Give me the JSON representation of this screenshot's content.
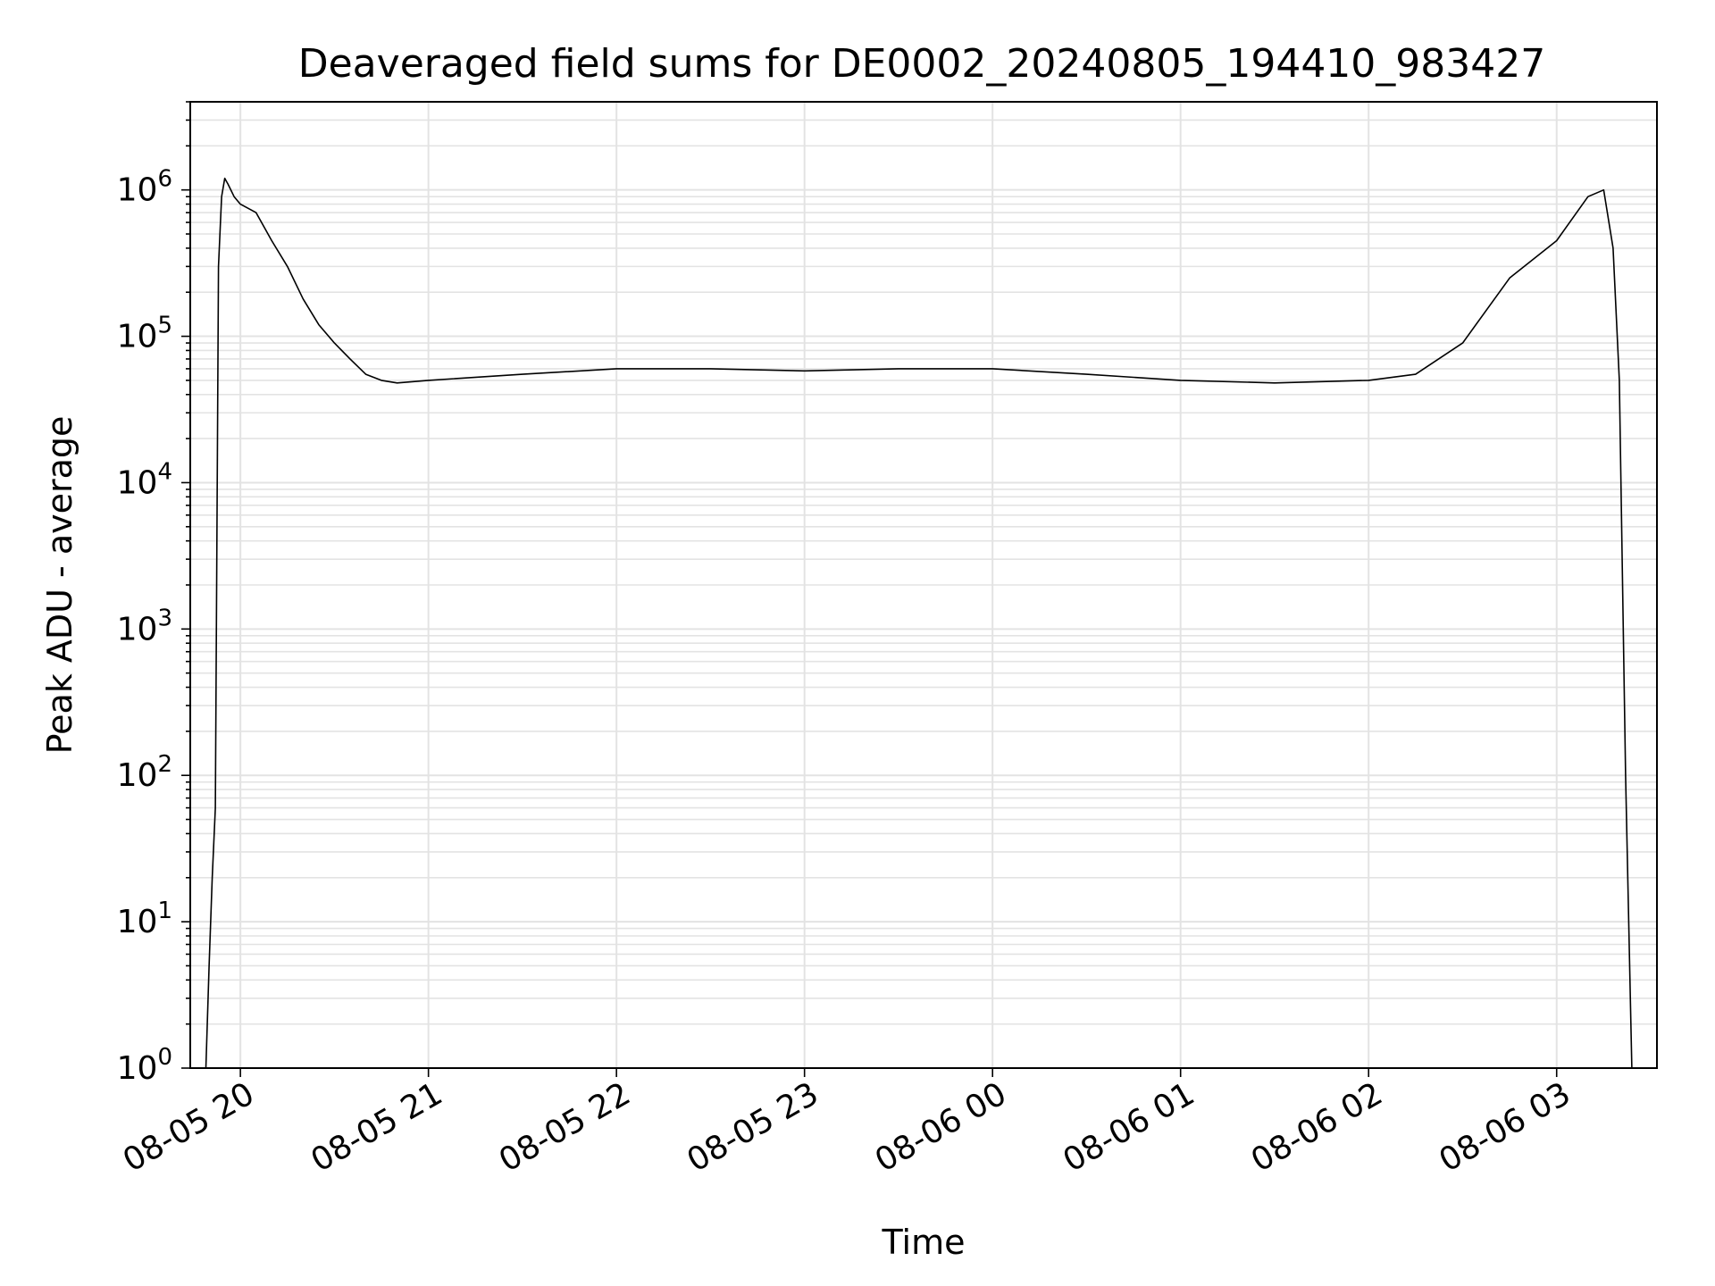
{
  "chart_data": {
    "type": "line",
    "title": "Deaveraged field sums for DE0002_20240805_194410_983427",
    "xlabel": "Time",
    "ylabel": "Peak ADU - average",
    "y_scale": "log",
    "ylim": [
      1,
      4000000
    ],
    "xlim": [
      "2024-08-05 19:44",
      "2024-08-06 03:32"
    ],
    "grid": true,
    "line_color": "#000000",
    "x_tick_labels": [
      "08-05 20",
      "08-05 21",
      "08-05 22",
      "08-05 23",
      "08-06 00",
      "08-06 01",
      "08-06 02",
      "08-06 03"
    ],
    "x_tick_values": [
      "2024-08-05 20:00",
      "2024-08-05 21:00",
      "2024-08-05 22:00",
      "2024-08-05 23:00",
      "2024-08-06 00:00",
      "2024-08-06 01:00",
      "2024-08-06 02:00",
      "2024-08-06 03:00"
    ],
    "y_tick_labels": [
      {
        "base": "10",
        "exp": "0",
        "value": 1
      },
      {
        "base": "10",
        "exp": "1",
        "value": 10
      },
      {
        "base": "10",
        "exp": "2",
        "value": 100
      },
      {
        "base": "10",
        "exp": "3",
        "value": 1000
      },
      {
        "base": "10",
        "exp": "4",
        "value": 10000
      },
      {
        "base": "10",
        "exp": "5",
        "value": 100000
      },
      {
        "base": "10",
        "exp": "6",
        "value": 1000000
      }
    ],
    "series": [
      {
        "x": [
          "2024-08-05 19:49",
          "2024-08-05 19:50",
          "2024-08-05 19:51",
          "2024-08-05 19:52",
          "2024-08-05 19:53",
          "2024-08-05 19:54",
          "2024-08-05 19:55",
          "2024-08-05 19:56",
          "2024-08-05 19:58",
          "2024-08-05 20:00",
          "2024-08-05 20:05",
          "2024-08-05 20:10",
          "2024-08-05 20:15",
          "2024-08-05 20:20",
          "2024-08-05 20:25",
          "2024-08-05 20:30",
          "2024-08-05 20:35",
          "2024-08-05 20:40",
          "2024-08-05 20:45",
          "2024-08-05 20:50",
          "2024-08-05 21:00",
          "2024-08-05 21:30",
          "2024-08-05 22:00",
          "2024-08-05 22:30",
          "2024-08-05 23:00",
          "2024-08-05 23:30",
          "2024-08-06 00:00",
          "2024-08-06 00:30",
          "2024-08-06 01:00",
          "2024-08-06 01:30",
          "2024-08-06 02:00",
          "2024-08-06 02:15",
          "2024-08-06 02:30",
          "2024-08-06 02:45",
          "2024-08-06 03:00",
          "2024-08-06 03:10",
          "2024-08-06 03:15",
          "2024-08-06 03:18",
          "2024-08-06 03:20",
          "2024-08-06 03:22",
          "2024-08-06 03:24"
        ],
        "y": [
          1,
          5,
          20,
          60,
          300000,
          900000,
          1200000,
          1100000,
          900000,
          800000,
          700000,
          450000,
          300000,
          180000,
          120000,
          90000,
          70000,
          55000,
          50000,
          48000,
          50000,
          55000,
          60000,
          60000,
          58000,
          60000,
          60000,
          55000,
          50000,
          48000,
          50000,
          55000,
          90000,
          250000,
          450000,
          900000,
          1000000,
          400000,
          50000,
          100,
          1
        ]
      }
    ]
  }
}
